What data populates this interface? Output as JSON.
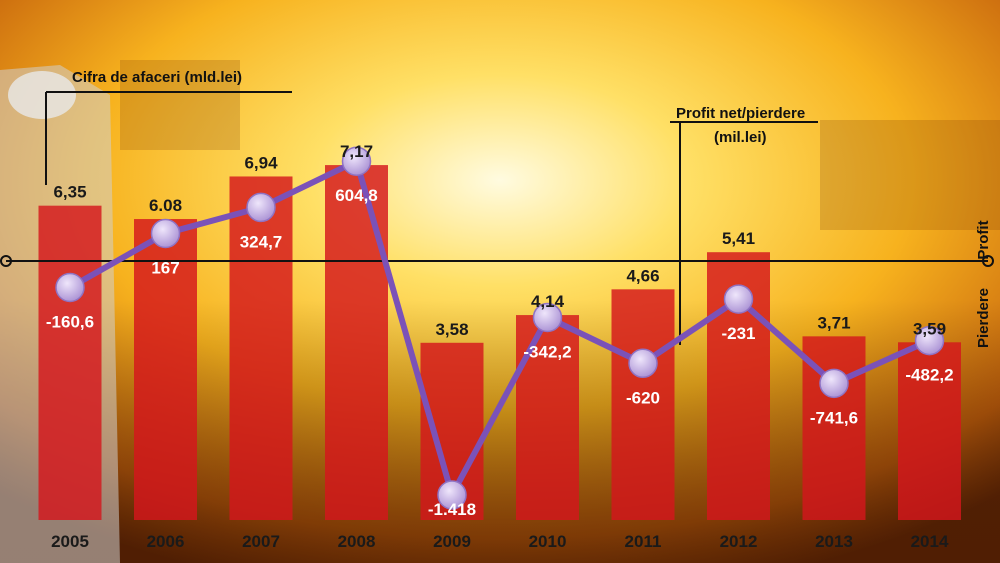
{
  "chart_data": {
    "type": "bar",
    "categories": [
      "2005",
      "2006",
      "2007",
      "2008",
      "2009",
      "2010",
      "2011",
      "2012",
      "2013",
      "2014"
    ],
    "series": [
      {
        "name": "Cifra de afaceri (mld.lei)",
        "type": "bar",
        "values": [
          6.35,
          6.08,
          6.94,
          7.17,
          3.58,
          4.14,
          4.66,
          5.41,
          3.71,
          3.59
        ],
        "labels": [
          "6,35",
          "6.08",
          "6,94",
          "7,17",
          "3,58",
          "4,14",
          "4,66",
          "5,41",
          "3,71",
          "3,59"
        ]
      },
      {
        "name": "Profit net/pierdere (mil.lei)",
        "type": "line",
        "values": [
          -160.6,
          167,
          324.7,
          604.8,
          -1418,
          -342.2,
          -620,
          -231,
          -741.6,
          -482.2
        ],
        "labels": [
          "-160,6",
          "167",
          "324,7",
          "604,8",
          "-1.418",
          "-342,2",
          "-620",
          "-231",
          "-741,6",
          "-482,2"
        ]
      }
    ],
    "legend": {
      "bars_title": "Cifra de afaceri (mld.lei)",
      "line_title": "Profit net/pierdere",
      "line_unit": "(mil.lei)"
    },
    "side_labels": {
      "profit": "Profit",
      "loss": "Pierdere"
    },
    "colors": {
      "bar": "#d4161c",
      "line": "#7b52b8",
      "point": "#c9b8e6"
    }
  }
}
